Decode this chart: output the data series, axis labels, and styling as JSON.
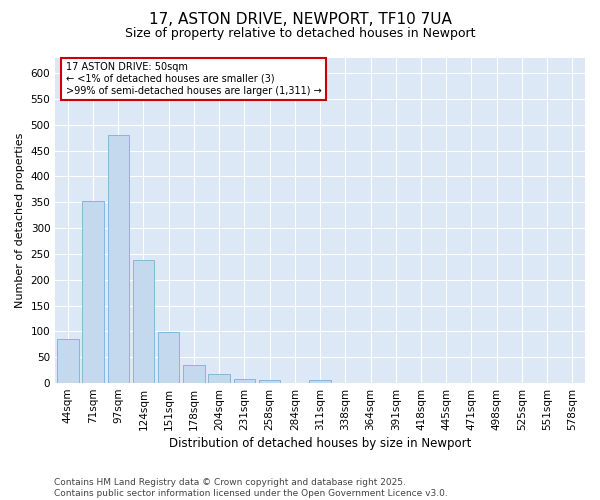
{
  "title": "17, ASTON DRIVE, NEWPORT, TF10 7UA",
  "subtitle": "Size of property relative to detached houses in Newport",
  "xlabel": "Distribution of detached houses by size in Newport",
  "ylabel": "Number of detached properties",
  "bar_color": "#c5d9ee",
  "bar_edge_color": "#7aafd4",
  "background_color": "#dce8f5",
  "annotation_text_line1": "17 ASTON DRIVE: 50sqm",
  "annotation_text_line2": "← <1% of detached houses are smaller (3)",
  "annotation_text_line3": ">99% of semi-detached houses are larger (1,311) →",
  "annotation_fontsize": 7,
  "categories": [
    "44sqm",
    "71sqm",
    "97sqm",
    "124sqm",
    "151sqm",
    "178sqm",
    "204sqm",
    "231sqm",
    "258sqm",
    "284sqm",
    "311sqm",
    "338sqm",
    "364sqm",
    "391sqm",
    "418sqm",
    "445sqm",
    "471sqm",
    "498sqm",
    "525sqm",
    "551sqm",
    "578sqm"
  ],
  "values": [
    85,
    352,
    480,
    238,
    98,
    35,
    18,
    8,
    5,
    0,
    5,
    1,
    0,
    0,
    0,
    0,
    0,
    0,
    0,
    0,
    1
  ],
  "ylim": [
    0,
    630
  ],
  "yticks": [
    0,
    50,
    100,
    150,
    200,
    250,
    300,
    350,
    400,
    450,
    500,
    550,
    600
  ],
  "footer_text": "Contains HM Land Registry data © Crown copyright and database right 2025.\nContains public sector information licensed under the Open Government Licence v3.0.",
  "title_fontsize": 11,
  "subtitle_fontsize": 9,
  "xlabel_fontsize": 8.5,
  "ylabel_fontsize": 8,
  "tick_fontsize": 7.5,
  "footer_fontsize": 6.5,
  "fig_bg": "#ffffff",
  "grid_color": "#ffffff",
  "annotation_border_color": "#cc0000"
}
